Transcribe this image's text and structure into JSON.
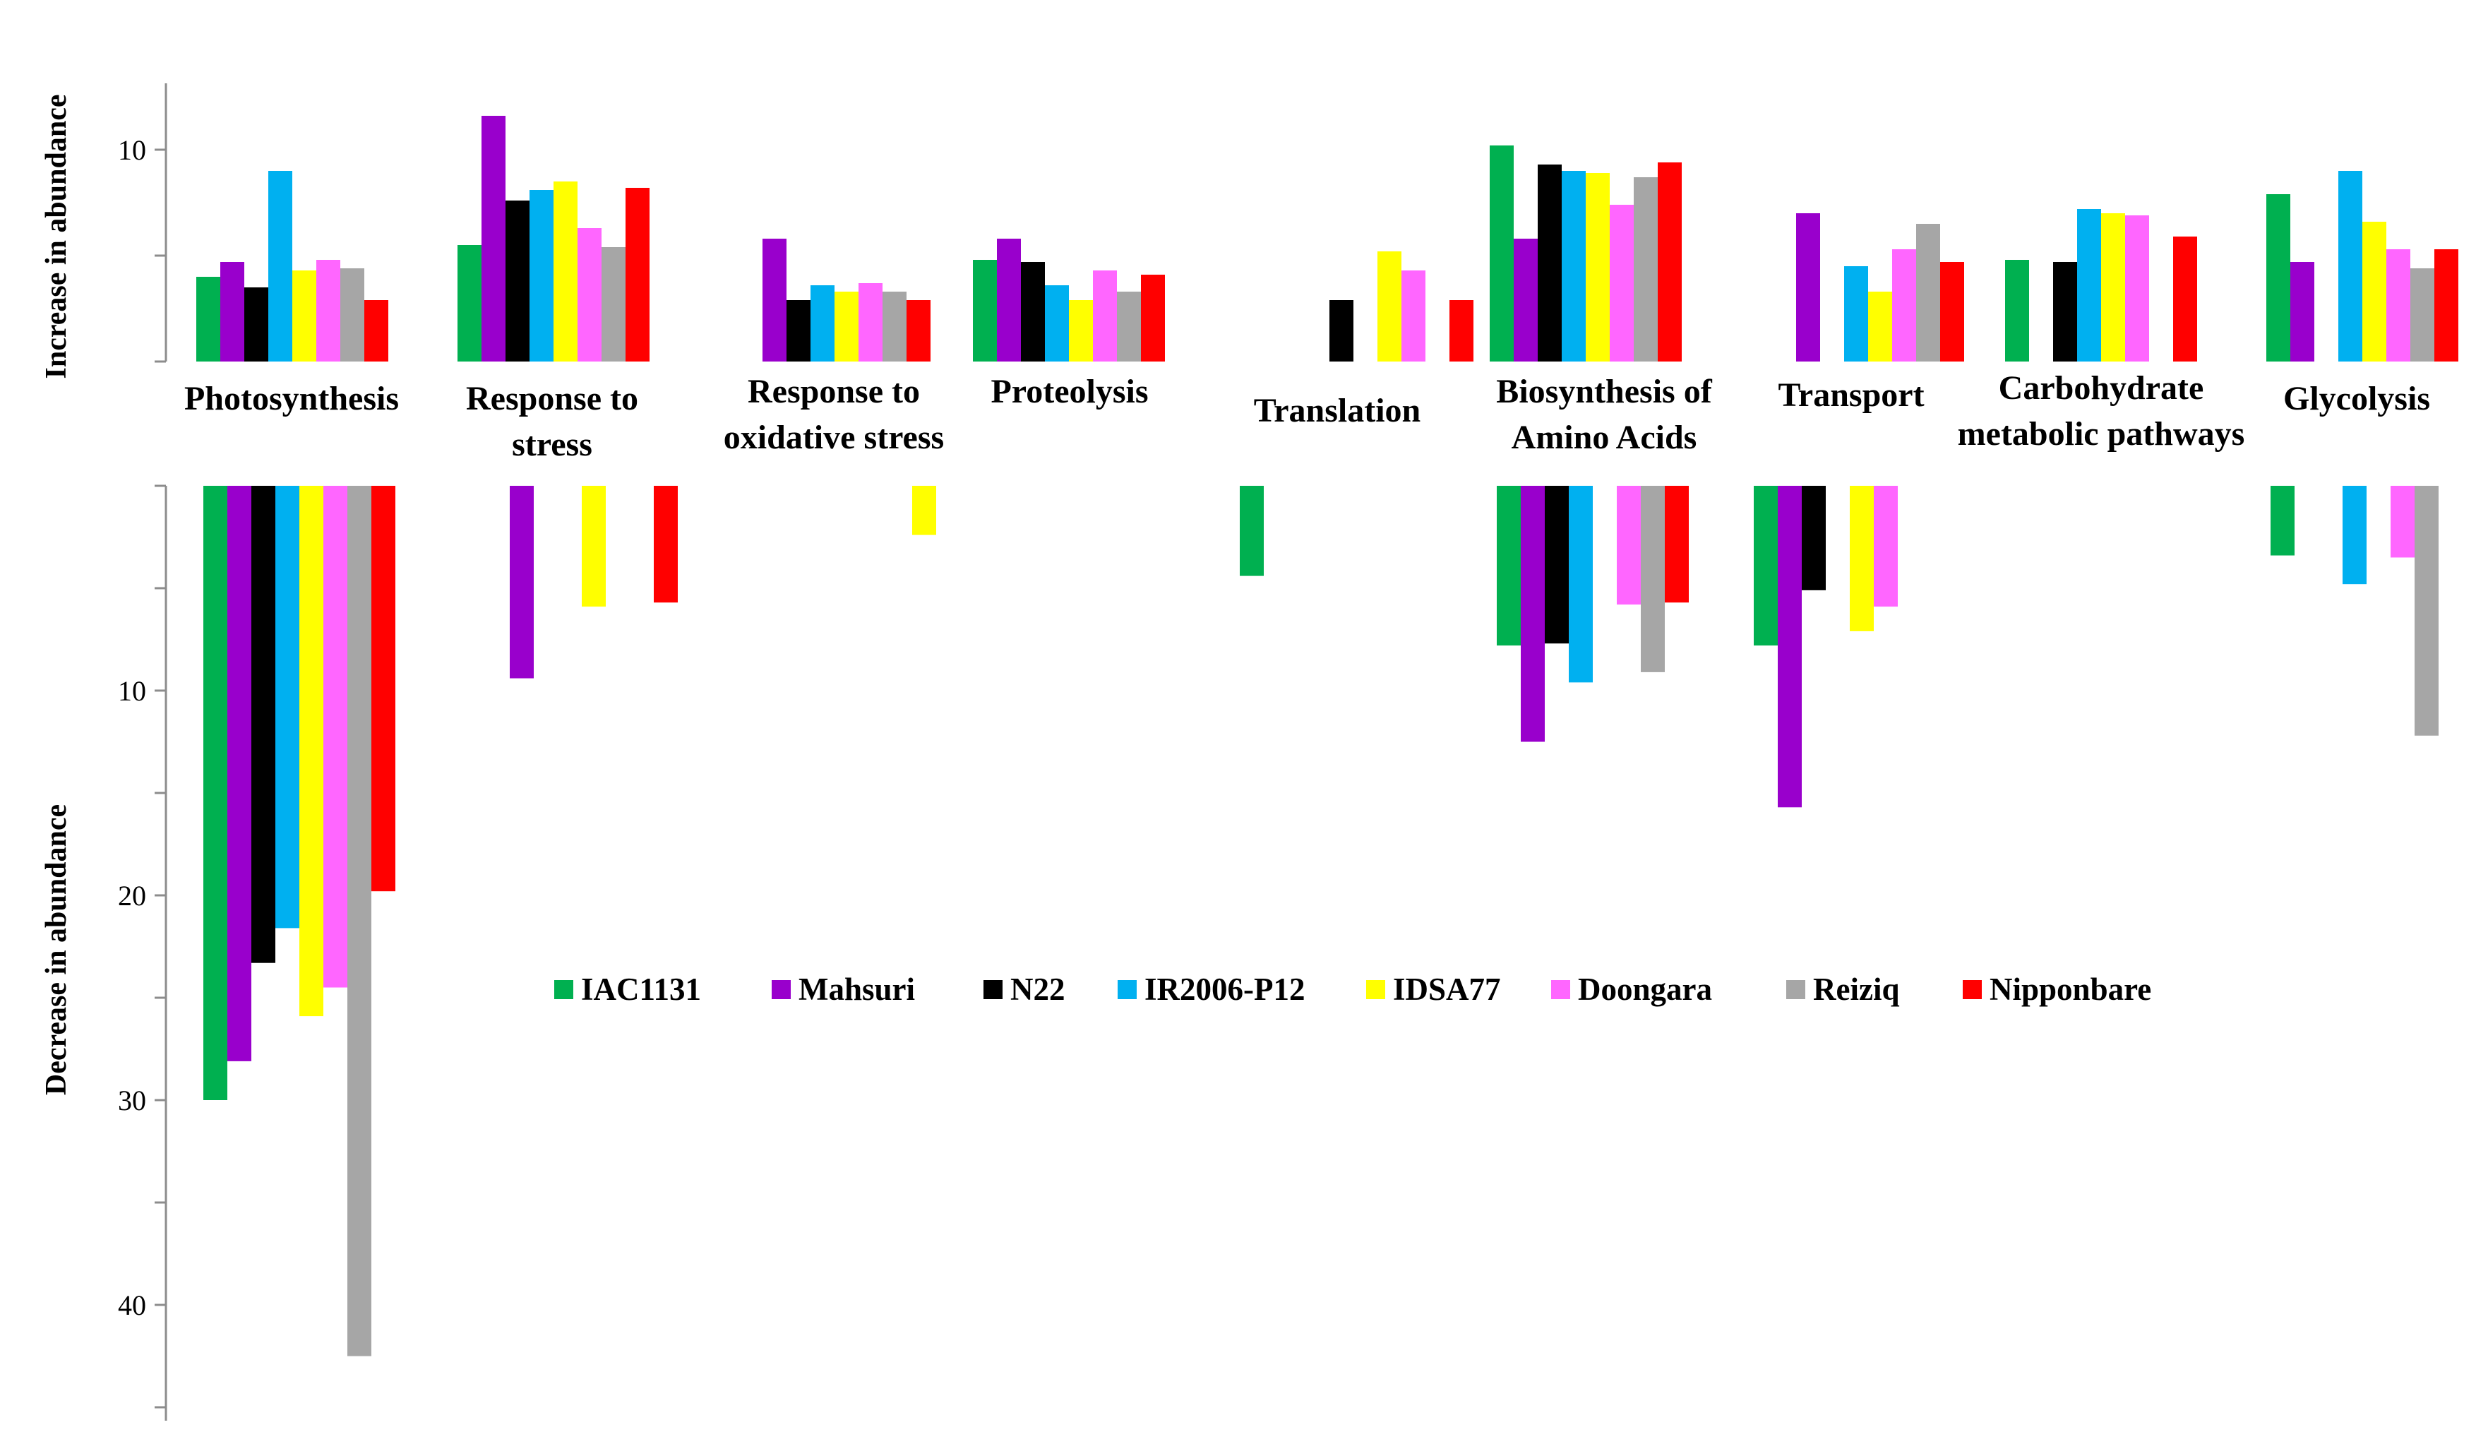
{
  "chart_data": {
    "type": "bar",
    "layout": "diverging-split-panels",
    "title": "",
    "increase_panel": {
      "ylabel": "Increase in abundance",
      "ylim": [
        0,
        13
      ],
      "yticks": [
        10
      ],
      "series": [
        {
          "name": "IAC1131",
          "color": "#00b050",
          "values": [
            4,
            5.5,
            0,
            4.8,
            0,
            10.2,
            0,
            4.8,
            7.9
          ]
        },
        {
          "name": "Mahsuri",
          "color": "#9900cc",
          "values": [
            4.7,
            11.6,
            5.8,
            5.8,
            0,
            5.8,
            7,
            0,
            4.7
          ]
        },
        {
          "name": "N22",
          "color": "#000000",
          "values": [
            3.5,
            7.6,
            2.9,
            4.7,
            2.9,
            9.3,
            0,
            4.7,
            0
          ]
        },
        {
          "name": "IR2006-P12",
          "color": "#00b0f0",
          "values": [
            9,
            8.1,
            3.6,
            3.6,
            0,
            9,
            4.5,
            7.2,
            9
          ]
        },
        {
          "name": "IDSA77",
          "color": "#ffff00",
          "values": [
            4.3,
            8.5,
            3.3,
            2.9,
            5.2,
            8.9,
            3.3,
            7,
            6.6
          ]
        },
        {
          "name": "Doongara",
          "color": "#ff66ff",
          "values": [
            4.8,
            6.3,
            3.7,
            4.3,
            4.3,
            7.4,
            5.3,
            6.9,
            5.3
          ]
        },
        {
          "name": "Reiziq",
          "color": "#a6a6a6",
          "values": [
            4.4,
            5.4,
            3.3,
            3.3,
            0,
            8.7,
            6.5,
            0,
            4.4
          ]
        },
        {
          "name": "Nipponbare",
          "color": "#ff0000",
          "values": [
            2.9,
            8.2,
            2.9,
            4.1,
            2.9,
            9.4,
            4.7,
            5.9,
            5.3
          ]
        }
      ]
    },
    "decrease_panel": {
      "ylabel": "Decrease in abundance",
      "ylim": [
        0,
        45
      ],
      "yticks": [
        10,
        20,
        30,
        40
      ],
      "series": [
        {
          "name": "IAC1131",
          "values": [
            30,
            0,
            0,
            0,
            4.4,
            7.8,
            7.8,
            0,
            3.4
          ]
        },
        {
          "name": "Mahsuri",
          "values": [
            28.1,
            9.4,
            0,
            0,
            0,
            12.5,
            15.7,
            0,
            0
          ]
        },
        {
          "name": "N22",
          "values": [
            23.3,
            0,
            0,
            0,
            0,
            7.7,
            5.1,
            0,
            0
          ]
        },
        {
          "name": "IR2006-P12",
          "values": [
            21.6,
            0,
            0,
            0,
            0,
            9.6,
            0,
            0,
            4.8
          ]
        },
        {
          "name": "IDSA77",
          "values": [
            25.9,
            5.9,
            2.4,
            0,
            0,
            0,
            7.1,
            0,
            0
          ]
        },
        {
          "name": "Doongara",
          "values": [
            24.5,
            0,
            0,
            0,
            0,
            5.8,
            5.9,
            0,
            3.5
          ]
        },
        {
          "name": "Reiziq",
          "values": [
            42.5,
            0,
            0,
            0,
            0,
            9.1,
            0,
            0,
            12.2
          ]
        },
        {
          "name": "Nipponbare",
          "values": [
            19.8,
            5.7,
            0,
            0,
            0,
            5.7,
            0,
            0,
            0
          ]
        }
      ]
    },
    "categories": [
      [
        "Photosynthesis"
      ],
      [
        "Response to",
        "stress"
      ],
      [
        "Response to",
        "oxidative stress"
      ],
      [
        "Proteolysis"
      ],
      [
        "Translation"
      ],
      [
        "Biosynthesis of",
        "Amino Acids"
      ],
      [
        "Transport"
      ],
      [
        "Carbohydrate",
        "metabolic pathways"
      ],
      [
        "Glycolysis"
      ]
    ],
    "legend": [
      "IAC1131",
      "Mahsuri",
      "N22",
      "IR2006-P12",
      "IDSA77",
      "Doongara",
      "Reiziq",
      "Nipponbare"
    ],
    "legend_position": "inside, center of lower panel",
    "grid": false
  }
}
